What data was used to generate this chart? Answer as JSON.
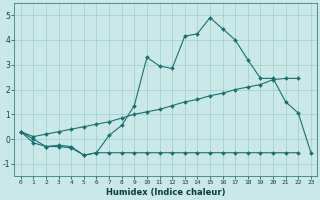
{
  "xlabel": "Humidex (Indice chaleur)",
  "ylabel": "",
  "bg_color": "#cbe8e8",
  "line_color": "#1a7070",
  "grid_color": "#9ecece",
  "xlim": [
    -0.5,
    23.5
  ],
  "ylim": [
    -1.5,
    5.5
  ],
  "xtick_labels": [
    "0",
    "1",
    "2",
    "3",
    "4",
    "5",
    "6",
    "7",
    "8",
    "9",
    "10",
    "11",
    "12",
    "13",
    "14",
    "15",
    "16",
    "17",
    "18",
    "19",
    "20",
    "21",
    "22",
    "23"
  ],
  "ytick_values": [
    -1,
    0,
    1,
    2,
    3,
    4,
    5
  ],
  "line1_x": [
    0,
    1,
    2,
    3,
    4,
    5,
    6,
    7,
    8,
    9,
    10,
    11,
    12,
    13,
    14,
    15,
    16,
    17,
    18,
    19,
    20,
    21,
    22,
    23
  ],
  "line1_y": [
    0.3,
    0.0,
    -0.3,
    -0.25,
    -0.3,
    -0.65,
    -0.55,
    0.15,
    0.55,
    1.35,
    3.3,
    2.95,
    2.85,
    4.15,
    4.25,
    4.9,
    4.45,
    4.0,
    3.2,
    2.45,
    2.45,
    1.5,
    1.05,
    -0.55
  ],
  "line2_x": [
    0,
    1,
    2,
    3,
    4,
    5,
    6,
    7,
    8,
    9,
    10,
    11,
    12,
    13,
    14,
    15,
    16,
    17,
    18,
    19,
    20,
    21,
    22
  ],
  "line2_y": [
    0.3,
    0.1,
    0.2,
    0.3,
    0.4,
    0.5,
    0.6,
    0.7,
    0.85,
    1.0,
    1.1,
    1.2,
    1.35,
    1.5,
    1.6,
    1.75,
    1.85,
    2.0,
    2.1,
    2.2,
    2.4,
    2.45,
    2.45
  ],
  "line3_x": [
    0,
    1,
    2,
    3,
    4,
    5,
    6,
    7,
    8,
    9,
    10,
    11,
    12,
    13,
    14,
    15,
    16,
    17,
    18,
    19,
    20,
    21,
    22
  ],
  "line3_y": [
    0.3,
    -0.15,
    -0.3,
    -0.3,
    -0.35,
    -0.65,
    -0.55,
    -0.55,
    -0.55,
    -0.55,
    -0.55,
    -0.55,
    -0.55,
    -0.55,
    -0.55,
    -0.55,
    -0.55,
    -0.55,
    -0.55,
    -0.55,
    -0.55,
    -0.55,
    -0.55
  ]
}
